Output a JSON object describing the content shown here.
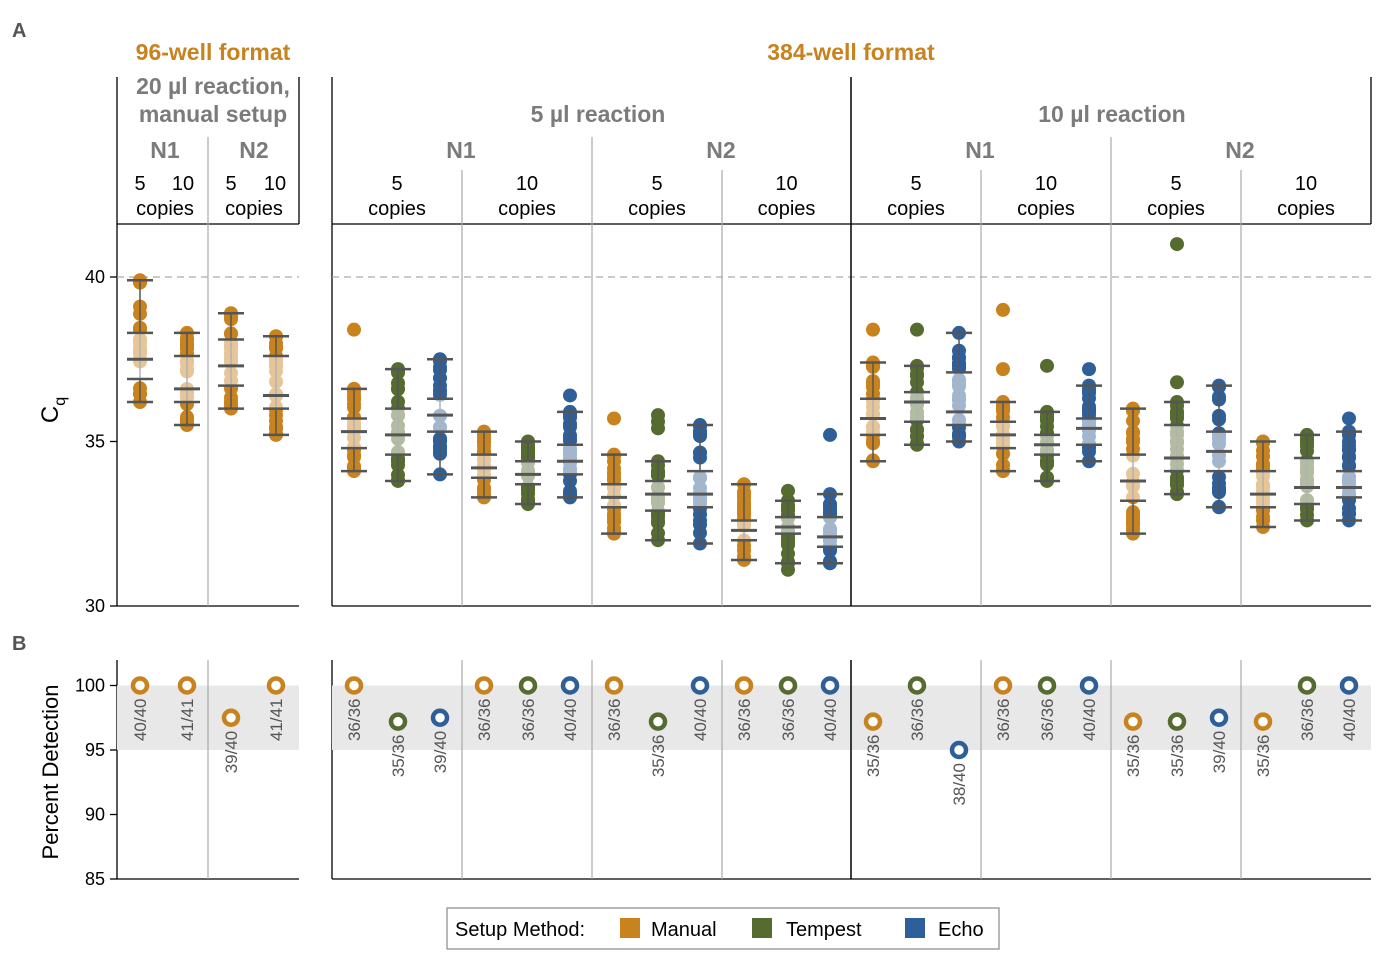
{
  "colors": {
    "Manual": "#c8821e",
    "Tempest": "#556b2f",
    "Echo": "#2e5f99"
  },
  "panel_letters": {
    "a": "A",
    "b": "B"
  },
  "headers": {
    "format96": "96-well format",
    "format384": "384-well format",
    "reaction20_line1": "20 µl reaction,",
    "reaction20_line2": "manual setup",
    "reaction5": "5 µl reaction",
    "reaction10": "10 µl reaction"
  },
  "legend": {
    "title": "Setup Method:",
    "items": [
      "Manual",
      "Tempest",
      "Echo"
    ]
  },
  "chart_data": [
    {
      "type": "box",
      "panel": "A",
      "ylabel": "C",
      "ylabel_sub": "q",
      "ylim": [
        30,
        41.5
      ],
      "yticks": [
        30,
        35,
        40
      ],
      "reference_line": 40,
      "facets": [
        {
          "format": "96-well",
          "reaction": "20 µl reaction, manual setup",
          "target": "N1",
          "copies_label": [
            "5",
            "10",
            "copies"
          ],
          "groups": [
            {
              "method": "Manual",
              "copies": "5",
              "min": 36.2,
              "q1": 36.9,
              "median": 37.5,
              "q3": 38.3,
              "max": 39.9,
              "outliers": []
            },
            {
              "method": "Manual",
              "copies": "10",
              "min": 35.5,
              "q1": 36.2,
              "median": 36.6,
              "q3": 37.6,
              "max": 38.3,
              "outliers": []
            }
          ]
        },
        {
          "format": "96-well",
          "reaction": "20 µl reaction, manual setup",
          "target": "N2",
          "copies_label": [
            "5",
            "10",
            "copies"
          ],
          "groups": [
            {
              "method": "Manual",
              "copies": "5",
              "min": 36.0,
              "q1": 36.7,
              "median": 37.3,
              "q3": 38.1,
              "max": 38.9,
              "outliers": []
            },
            {
              "method": "Manual",
              "copies": "10",
              "min": 35.2,
              "q1": 36.0,
              "median": 36.4,
              "q3": 37.6,
              "max": 38.2,
              "outliers": []
            }
          ]
        },
        {
          "format": "384-well",
          "reaction": "5 µl reaction",
          "target": "N1",
          "copies": "5",
          "groups": [
            {
              "method": "Manual",
              "min": 34.1,
              "q1": 34.8,
              "median": 35.3,
              "q3": 35.7,
              "max": 36.6,
              "outliers": [
                38.4
              ]
            },
            {
              "method": "Tempest",
              "min": 33.8,
              "q1": 34.6,
              "median": 35.2,
              "q3": 36.0,
              "max": 37.2,
              "outliers": []
            },
            {
              "method": "Echo",
              "min": 34.0,
              "q1": 35.3,
              "median": 35.8,
              "q3": 36.3,
              "max": 37.5,
              "outliers": []
            }
          ]
        },
        {
          "format": "384-well",
          "reaction": "5 µl reaction",
          "target": "N1",
          "copies": "10",
          "groups": [
            {
              "method": "Manual",
              "min": 33.3,
              "q1": 33.9,
              "median": 34.2,
              "q3": 34.6,
              "max": 35.3,
              "outliers": []
            },
            {
              "method": "Tempest",
              "min": 33.1,
              "q1": 33.7,
              "median": 34.0,
              "q3": 34.4,
              "max": 35.0,
              "outliers": []
            },
            {
              "method": "Echo",
              "min": 33.3,
              "q1": 34.0,
              "median": 34.4,
              "q3": 34.9,
              "max": 35.9,
              "outliers": [
                36.4
              ]
            }
          ]
        },
        {
          "format": "384-well",
          "reaction": "5 µl reaction",
          "target": "N2",
          "copies": "5",
          "groups": [
            {
              "method": "Manual",
              "min": 32.2,
              "q1": 33.0,
              "median": 33.3,
              "q3": 33.7,
              "max": 34.6,
              "outliers": [
                35.7
              ]
            },
            {
              "method": "Tempest",
              "min": 32.0,
              "q1": 32.9,
              "median": 33.4,
              "q3": 33.8,
              "max": 34.4,
              "outliers": [
                35.4,
                35.6,
                35.8
              ]
            },
            {
              "method": "Echo",
              "min": 31.9,
              "q1": 33.0,
              "median": 33.4,
              "q3": 34.1,
              "max": 35.5,
              "outliers": []
            }
          ]
        },
        {
          "format": "384-well",
          "reaction": "5 µl reaction",
          "target": "N2",
          "copies": "10",
          "groups": [
            {
              "method": "Manual",
              "min": 31.4,
              "q1": 32.0,
              "median": 32.3,
              "q3": 32.6,
              "max": 33.7,
              "outliers": []
            },
            {
              "method": "Tempest",
              "min": 31.3,
              "q1": 32.2,
              "median": 32.4,
              "q3": 32.7,
              "max": 33.2,
              "outliers": [
                31.1,
                33.5
              ]
            },
            {
              "method": "Echo",
              "min": 31.3,
              "q1": 31.8,
              "median": 32.1,
              "q3": 32.7,
              "max": 33.4,
              "outliers": [
                35.2
              ]
            }
          ]
        },
        {
          "format": "384-well",
          "reaction": "10 µl reaction",
          "target": "N1",
          "copies": "5",
          "groups": [
            {
              "method": "Manual",
              "min": 34.4,
              "q1": 35.2,
              "median": 35.7,
              "q3": 36.3,
              "max": 37.4,
              "outliers": [
                38.4
              ]
            },
            {
              "method": "Tempest",
              "min": 34.9,
              "q1": 35.6,
              "median": 36.2,
              "q3": 36.5,
              "max": 37.3,
              "outliers": [
                38.4
              ]
            },
            {
              "method": "Echo",
              "min": 35.0,
              "q1": 35.5,
              "median": 35.9,
              "q3": 37.1,
              "max": 38.3,
              "outliers": []
            }
          ]
        },
        {
          "format": "384-well",
          "reaction": "10 µl reaction",
          "target": "N1",
          "copies": "10",
          "groups": [
            {
              "method": "Manual",
              "min": 34.1,
              "q1": 34.8,
              "median": 35.2,
              "q3": 35.6,
              "max": 36.2,
              "outliers": [
                37.2,
                39.0
              ]
            },
            {
              "method": "Tempest",
              "min": 33.8,
              "q1": 34.6,
              "median": 34.9,
              "q3": 35.2,
              "max": 35.9,
              "outliers": [
                37.3
              ]
            },
            {
              "method": "Echo",
              "min": 34.4,
              "q1": 34.9,
              "median": 35.4,
              "q3": 35.7,
              "max": 36.7,
              "outliers": [
                37.2
              ]
            }
          ]
        },
        {
          "format": "384-well",
          "reaction": "10 µl reaction",
          "target": "N2",
          "copies": "5",
          "groups": [
            {
              "method": "Manual",
              "min": 32.2,
              "q1": 33.2,
              "median": 33.8,
              "q3": 34.6,
              "max": 36.0,
              "outliers": []
            },
            {
              "method": "Tempest",
              "min": 33.4,
              "q1": 34.1,
              "median": 34.5,
              "q3": 35.5,
              "max": 36.2,
              "outliers": [
                36.8,
                41.0
              ]
            },
            {
              "method": "Echo",
              "min": 33.0,
              "q1": 34.1,
              "median": 34.7,
              "q3": 35.3,
              "max": 36.7,
              "outliers": []
            }
          ]
        },
        {
          "format": "384-well",
          "reaction": "10 µl reaction",
          "target": "N2",
          "copies": "10",
          "groups": [
            {
              "method": "Manual",
              "min": 32.4,
              "q1": 33.0,
              "median": 33.4,
              "q3": 34.1,
              "max": 35.0,
              "outliers": []
            },
            {
              "method": "Tempest",
              "min": 32.6,
              "q1": 33.1,
              "median": 33.6,
              "q3": 34.5,
              "max": 35.2,
              "outliers": []
            },
            {
              "method": "Echo",
              "min": 32.6,
              "q1": 33.3,
              "median": 33.6,
              "q3": 34.1,
              "max": 35.3,
              "outliers": [
                35.7
              ]
            }
          ]
        }
      ]
    },
    {
      "type": "scatter",
      "panel": "B",
      "ylabel": "Percent Detection",
      "ylim": [
        85,
        102
      ],
      "yticks": [
        85,
        90,
        95,
        100
      ],
      "shaded_band": [
        95,
        100
      ],
      "facets": [
        {
          "target": "N1",
          "format": "96-well",
          "points": [
            {
              "method": "Manual",
              "copies": "5",
              "value": 100.0,
              "label": "40/40"
            },
            {
              "method": "Manual",
              "copies": "10",
              "value": 100.0,
              "label": "41/41"
            }
          ]
        },
        {
          "target": "N2",
          "format": "96-well",
          "points": [
            {
              "method": "Manual",
              "copies": "5",
              "value": 97.5,
              "label": "39/40"
            },
            {
              "method": "Manual",
              "copies": "10",
              "value": 100.0,
              "label": "41/41"
            }
          ]
        },
        {
          "target": "N1",
          "reaction": "5 µl reaction",
          "copies": "5",
          "points": [
            {
              "method": "Manual",
              "value": 100.0,
              "label": "36/36"
            },
            {
              "method": "Tempest",
              "value": 97.2,
              "label": "35/36"
            },
            {
              "method": "Echo",
              "value": 97.5,
              "label": "39/40"
            }
          ]
        },
        {
          "target": "N1",
          "reaction": "5 µl reaction",
          "copies": "10",
          "points": [
            {
              "method": "Manual",
              "value": 100.0,
              "label": "36/36"
            },
            {
              "method": "Tempest",
              "value": 100.0,
              "label": "36/36"
            },
            {
              "method": "Echo",
              "value": 100.0,
              "label": "40/40"
            }
          ]
        },
        {
          "target": "N2",
          "reaction": "5 µl reaction",
          "copies": "5",
          "points": [
            {
              "method": "Manual",
              "value": 100.0,
              "label": "36/36"
            },
            {
              "method": "Tempest",
              "value": 97.2,
              "label": "35/36"
            },
            {
              "method": "Echo",
              "value": 100.0,
              "label": "40/40"
            }
          ]
        },
        {
          "target": "N2",
          "reaction": "5 µl reaction",
          "copies": "10",
          "points": [
            {
              "method": "Manual",
              "value": 100.0,
              "label": "36/36"
            },
            {
              "method": "Tempest",
              "value": 100.0,
              "label": "36/36"
            },
            {
              "method": "Echo",
              "value": 100.0,
              "label": "40/40"
            }
          ]
        },
        {
          "target": "N1",
          "reaction": "10 µl reaction",
          "copies": "5",
          "points": [
            {
              "method": "Manual",
              "value": 97.2,
              "label": "35/36"
            },
            {
              "method": "Tempest",
              "value": 100.0,
              "label": "36/36"
            },
            {
              "method": "Echo",
              "value": 95.0,
              "label": "38/40"
            }
          ]
        },
        {
          "target": "N1",
          "reaction": "10 µl reaction",
          "copies": "10",
          "points": [
            {
              "method": "Manual",
              "value": 100.0,
              "label": "36/36"
            },
            {
              "method": "Tempest",
              "value": 100.0,
              "label": "36/36"
            },
            {
              "method": "Echo",
              "value": 100.0,
              "label": "40/40"
            }
          ]
        },
        {
          "target": "N2",
          "reaction": "10 µl reaction",
          "copies": "5",
          "points": [
            {
              "method": "Manual",
              "value": 97.2,
              "label": "35/36"
            },
            {
              "method": "Tempest",
              "value": 97.2,
              "label": "35/36"
            },
            {
              "method": "Echo",
              "value": 97.5,
              "label": "39/40"
            }
          ]
        },
        {
          "target": "N2",
          "reaction": "10 µl reaction",
          "copies": "10",
          "points": [
            {
              "method": "Manual",
              "value": 97.2,
              "label": "35/36"
            },
            {
              "method": "Tempest",
              "value": 100.0,
              "label": "36/36"
            },
            {
              "method": "Echo",
              "value": 100.0,
              "label": "40/40"
            }
          ]
        }
      ]
    }
  ]
}
